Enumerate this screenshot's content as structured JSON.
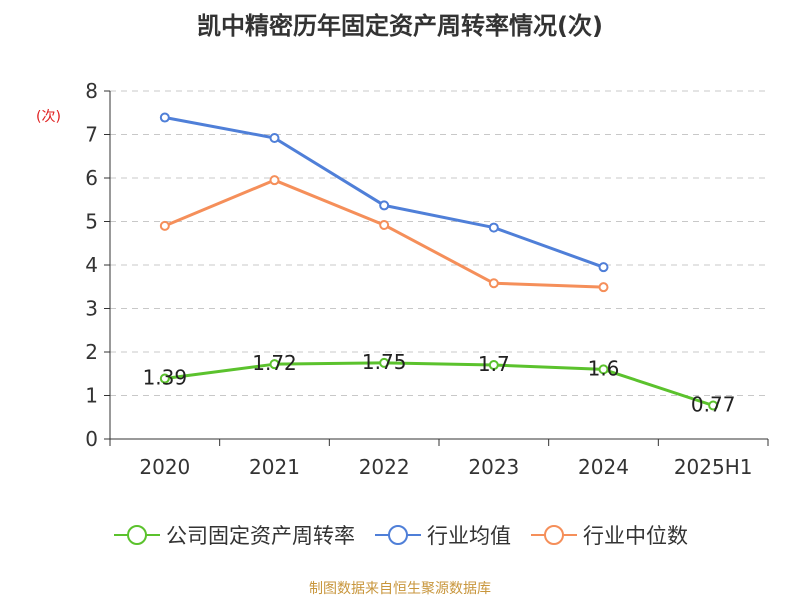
{
  "chart_data": {
    "type": "line",
    "title": "凯中精密历年固定资产周转率情况(次)",
    "ylabel": "(次)",
    "categories": [
      "2020",
      "2021",
      "2022",
      "2023",
      "2024",
      "2025H1"
    ],
    "ylim": [
      0,
      8
    ],
    "yticks": [
      0,
      1,
      2,
      3,
      4,
      5,
      6,
      7,
      8
    ],
    "grid": true,
    "legend_position": "bottom",
    "series": [
      {
        "name": "公司固定资产周转率",
        "color": "#5bc22d",
        "values": [
          1.39,
          1.72,
          1.75,
          1.7,
          1.6,
          0.77
        ],
        "labels": [
          "1.39",
          "1.72",
          "1.75",
          "1.7",
          "1.6",
          "0.77"
        ]
      },
      {
        "name": "行业均值",
        "color": "#4f7fd8",
        "values": [
          7.39,
          6.92,
          5.37,
          4.86,
          3.95,
          null
        ]
      },
      {
        "name": "行业中位数",
        "color": "#f58f5a",
        "values": [
          4.9,
          5.95,
          4.92,
          3.58,
          3.49,
          null
        ]
      }
    ]
  },
  "source": "制图数据来自恒生聚源数据库"
}
